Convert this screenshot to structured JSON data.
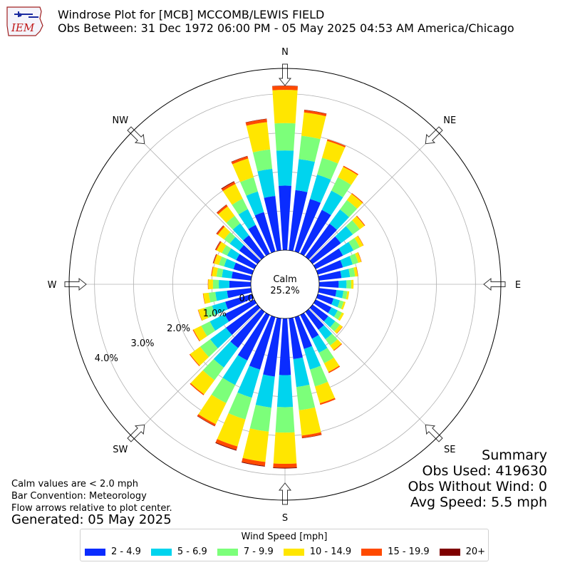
{
  "header": {
    "logo_text": "IEM",
    "title_line1": "Windrose Plot for [MCB] MCCOMB/LEWIS FIELD",
    "title_line2": "Obs Between: 31 Dec 1972 06:00 PM - 05 May 2025 04:53 AM America/Chicago"
  },
  "notes": {
    "line1": "Calm values are < 2.0 mph",
    "line2": "Bar Convention: Meteorology",
    "line3": "Flow arrows relative to plot center.",
    "generated": "Generated: 05 May 2025"
  },
  "summary": {
    "title": "Summary",
    "obs_used": "Obs Used: 419630",
    "obs_without_wind": "Obs Without Wind: 0",
    "avg_speed": "Avg Speed: 5.5 mph"
  },
  "legend": {
    "title": "Wind Speed [mph]",
    "items": [
      {
        "label": "2 - 4.9",
        "color": "#0a2cff"
      },
      {
        "label": "5 - 6.9",
        "color": "#00d4ee"
      },
      {
        "label": "7 - 9.9",
        "color": "#7cff7a"
      },
      {
        "label": "10 - 14.9",
        "color": "#ffe600"
      },
      {
        "label": "15 - 19.9",
        "color": "#ff4a00"
      },
      {
        "label": "20+",
        "color": "#7f0000"
      }
    ]
  },
  "chart_data": {
    "type": "windrose",
    "calm_label": "Calm",
    "calm_percent": "25.2%",
    "r_tick_labels": [
      "0.0%",
      "1.0%",
      "2.0%",
      "3.0%",
      "4.0%"
    ],
    "r_ticks": [
      0,
      1,
      2,
      3,
      4
    ],
    "r_max": 4.65,
    "compass_labels": [
      "N",
      "NE",
      "E",
      "SE",
      "S",
      "SW",
      "W",
      "NW"
    ],
    "direction_bins": 36,
    "bar_convention": "Meteorology",
    "series": [
      {
        "name": "2 - 4.9",
        "color": "#0a2cff",
        "values": [
          1.65,
          1.55,
          1.4,
          1.25,
          1.05,
          0.9,
          0.78,
          0.67,
          0.58,
          0.5,
          0.45,
          0.42,
          0.45,
          0.5,
          0.57,
          0.68,
          0.85,
          1.05,
          1.45,
          1.5,
          1.4,
          1.3,
          1.15,
          1.0,
          0.85,
          0.72,
          0.62,
          0.55,
          0.5,
          0.5,
          0.52,
          0.58,
          0.68,
          0.82,
          1.05,
          1.4
        ]
      },
      {
        "name": "5 - 6.9",
        "color": "#00d4ee",
        "values": [
          0.9,
          0.8,
          0.65,
          0.55,
          0.45,
          0.38,
          0.3,
          0.26,
          0.22,
          0.2,
          0.18,
          0.17,
          0.18,
          0.22,
          0.3,
          0.4,
          0.55,
          0.72,
          0.82,
          0.8,
          0.75,
          0.7,
          0.62,
          0.5,
          0.42,
          0.35,
          0.3,
          0.27,
          0.25,
          0.25,
          0.26,
          0.3,
          0.38,
          0.45,
          0.55,
          0.7
        ]
      },
      {
        "name": "7 - 9.9",
        "color": "#7cff7a",
        "values": [
          0.7,
          0.6,
          0.45,
          0.38,
          0.3,
          0.22,
          0.18,
          0.15,
          0.13,
          0.12,
          0.1,
          0.1,
          0.12,
          0.15,
          0.2,
          0.3,
          0.45,
          0.6,
          0.65,
          0.62,
          0.58,
          0.52,
          0.4,
          0.32,
          0.25,
          0.2,
          0.17,
          0.15,
          0.14,
          0.14,
          0.15,
          0.18,
          0.24,
          0.3,
          0.38,
          0.5
        ]
      },
      {
        "name": "10 - 14.9",
        "color": "#ffe600",
        "values": [
          0.85,
          0.6,
          0.45,
          0.3,
          0.2,
          0.15,
          0.1,
          0.08,
          0.07,
          0.06,
          0.05,
          0.05,
          0.06,
          0.08,
          0.15,
          0.25,
          0.45,
          0.65,
          0.8,
          0.78,
          0.72,
          0.6,
          0.45,
          0.32,
          0.22,
          0.17,
          0.14,
          0.12,
          0.12,
          0.13,
          0.15,
          0.2,
          0.3,
          0.42,
          0.5,
          0.7
        ]
      },
      {
        "name": "15 - 19.9",
        "color": "#ff4a00",
        "values": [
          0.1,
          0.06,
          0.04,
          0.03,
          0.02,
          0.02,
          0.01,
          0.01,
          0.01,
          0.0,
          0.0,
          0.0,
          0.0,
          0.01,
          0.02,
          0.03,
          0.04,
          0.06,
          0.1,
          0.1,
          0.09,
          0.05,
          0.03,
          0.02,
          0.02,
          0.01,
          0.01,
          0.01,
          0.02,
          0.02,
          0.03,
          0.04,
          0.05,
          0.06,
          0.06,
          0.08
        ]
      },
      {
        "name": "20+",
        "color": "#7f0000",
        "values": [
          0.01,
          0.01,
          0.0,
          0.0,
          0.0,
          0.0,
          0.0,
          0.0,
          0.0,
          0.0,
          0.0,
          0.0,
          0.0,
          0.0,
          0.0,
          0.0,
          0.0,
          0.01,
          0.02,
          0.02,
          0.02,
          0.01,
          0.0,
          0.0,
          0.0,
          0.0,
          0.0,
          0.0,
          0.0,
          0.01,
          0.01,
          0.01,
          0.01,
          0.02,
          0.01,
          0.01
        ]
      }
    ]
  }
}
